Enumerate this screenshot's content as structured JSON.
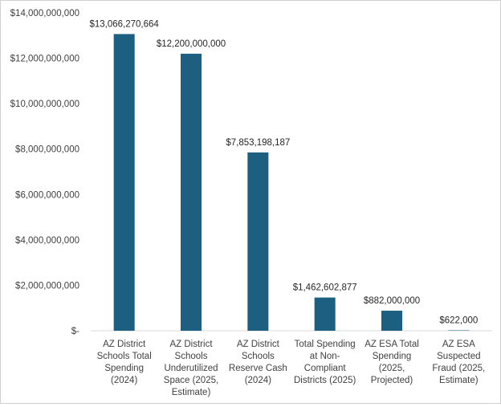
{
  "chart_data": {
    "type": "bar",
    "title": "",
    "xlabel": "",
    "ylabel": "",
    "ylim": [
      0,
      14000000000
    ],
    "yticks": [
      0,
      2000000000,
      4000000000,
      6000000000,
      8000000000,
      10000000000,
      12000000000,
      14000000000
    ],
    "ytick_labels": [
      "$-",
      "$2,000,000,000",
      "$4,000,000,000",
      "$6,000,000,000",
      "$8,000,000,000",
      "$10,000,000,000",
      "$12,000,000,000",
      "$14,000,000,000"
    ],
    "grid": false,
    "legend": "none",
    "bar_color": "#1c5f80",
    "categories": [
      [
        "AZ District",
        "Schools Total",
        "Spending",
        "(2024)"
      ],
      [
        "AZ District",
        "Schools",
        "Underutilized",
        "Space (2025,",
        "Estimate)"
      ],
      [
        "AZ District",
        "Schools",
        "Reserve Cash",
        "(2024)"
      ],
      [
        "Total Spending",
        "at Non-",
        "Compliant",
        "Districts (2025)"
      ],
      [
        "AZ ESA Total",
        "Spending",
        "(2025,",
        "Projected)"
      ],
      [
        "AZ ESA",
        "Suspected",
        "Fraud (2025,",
        "Estimate)"
      ]
    ],
    "values": [
      13066270664,
      12200000000,
      7853198187,
      1462602877,
      882000000,
      622000
    ],
    "data_labels": [
      "$13,066,270,664",
      "$12,200,000,000",
      "$7,853,198,187",
      "$1,462,602,877",
      "$882,000,000",
      "$622,000"
    ]
  }
}
